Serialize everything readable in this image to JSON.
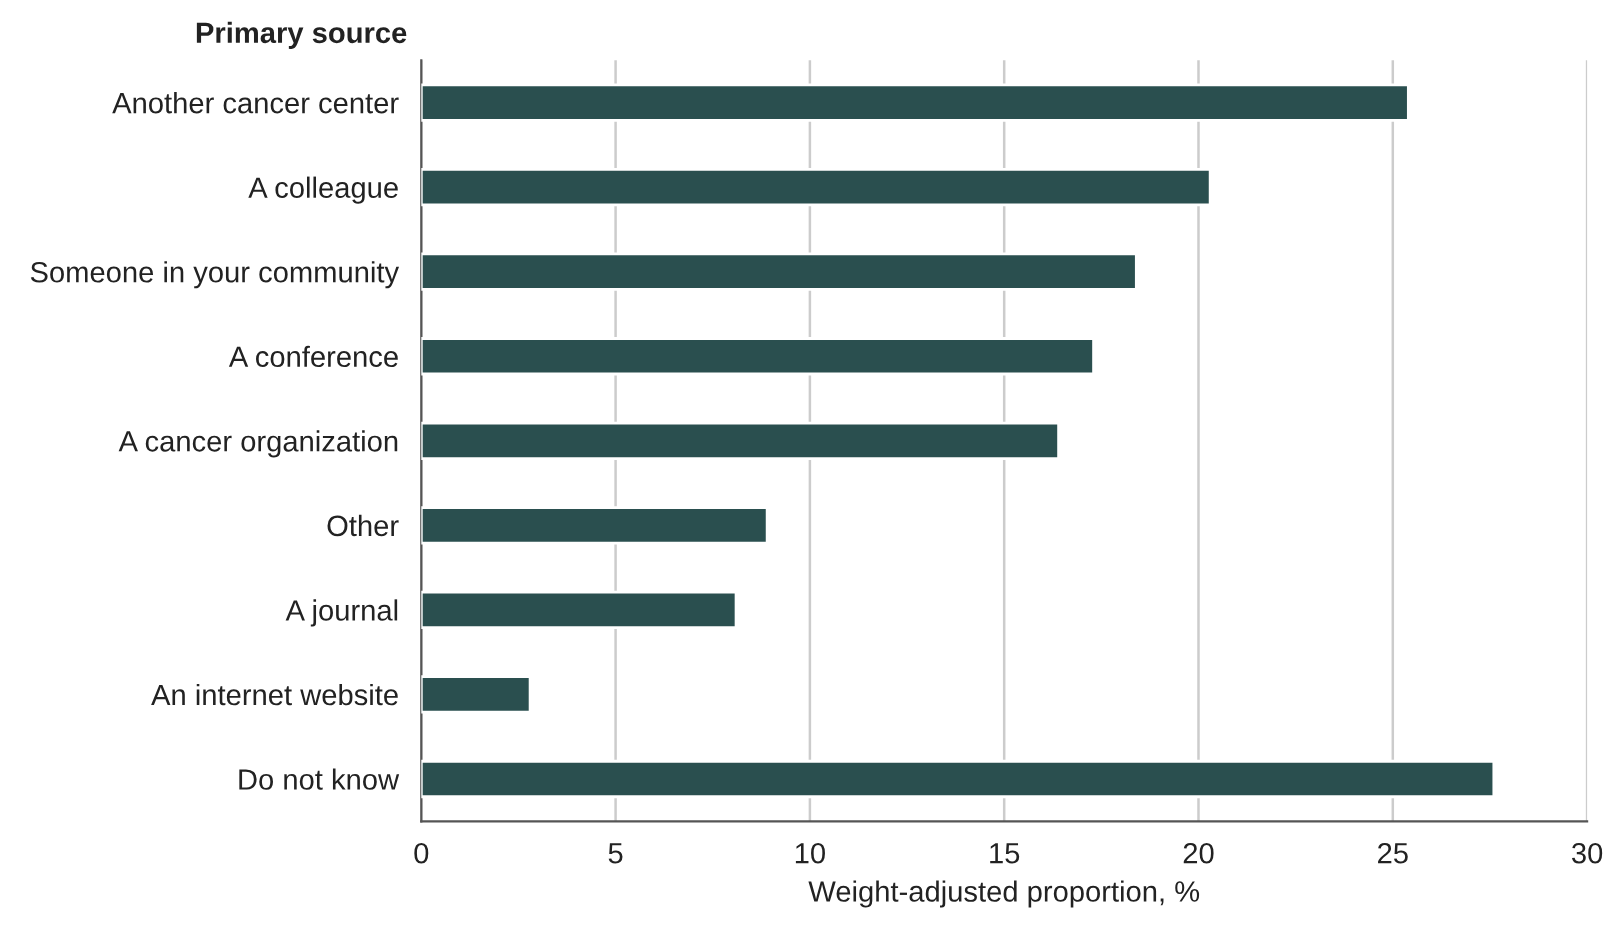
{
  "chart_data": {
    "type": "bar",
    "orientation": "horizontal",
    "ylabel": "Primary source",
    "xlabel": "Weight-adjusted proportion, %",
    "categories": [
      "Another cancer center",
      "A colleague",
      "Someone in your community",
      "A conference",
      "A cancer organization",
      "Other",
      "A journal",
      "An internet website",
      "Do not know"
    ],
    "values": [
      25.4,
      20.3,
      18.4,
      17.3,
      16.4,
      8.9,
      8.1,
      2.8,
      27.6
    ],
    "color": "#2a4f4f",
    "xlim": [
      0,
      30
    ],
    "xticks": [
      0,
      5,
      10,
      15,
      20,
      25,
      30
    ],
    "grid": "x"
  }
}
